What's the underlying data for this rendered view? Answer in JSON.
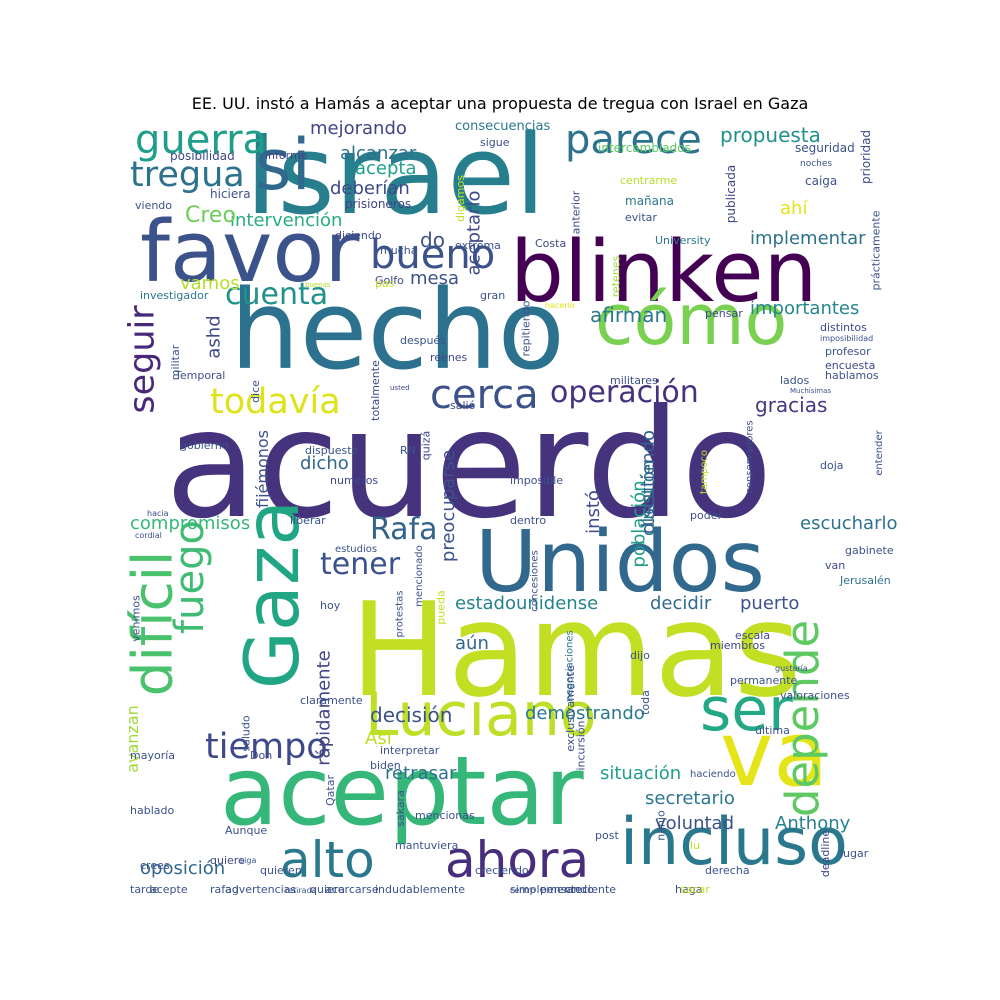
{
  "title": "EE. UU. instó a Hamás a aceptar una propuesta de tregua con Israel en Gaza",
  "words": [
    {
      "text": "acuerdo",
      "color": "#46337e"
    },
    {
      "text": "Hamas",
      "color": "#c2df23"
    },
    {
      "text": "Israel",
      "color": "#277f8e"
    },
    {
      "text": "hecho",
      "color": "#2c728e"
    },
    {
      "text": "aceptar",
      "color": "#35b779"
    },
    {
      "text": "blinken",
      "color": "#440154"
    },
    {
      "text": "Unidos",
      "color": "#31688e"
    },
    {
      "text": "favor",
      "color": "#3b528b"
    },
    {
      "text": "va",
      "color": "#e5e419"
    },
    {
      "text": "incluso",
      "color": "#2a788e"
    },
    {
      "text": "Gaza",
      "color": "#21a685"
    },
    {
      "text": "difícil",
      "color": "#4ac16d"
    },
    {
      "text": "cómo",
      "color": "#7ad151"
    },
    {
      "text": "si",
      "color": "#31688e"
    },
    {
      "text": "Luciano",
      "color": "#bddf26"
    },
    {
      "text": "ser",
      "color": "#22a884"
    },
    {
      "text": "ahora",
      "color": "#472d7b"
    },
    {
      "text": "alto",
      "color": "#2a788e"
    },
    {
      "text": "depende",
      "color": "#5ec962"
    },
    {
      "text": "fuego",
      "color": "#3fbc73"
    },
    {
      "text": "guerra",
      "color": "#1f9e89"
    },
    {
      "text": "parece",
      "color": "#2c728e"
    },
    {
      "text": "bueno",
      "color": "#3b528b"
    },
    {
      "text": "tregua",
      "color": "#2c728e"
    },
    {
      "text": "seguir",
      "color": "#482878"
    },
    {
      "text": "cerca",
      "color": "#3b528b"
    },
    {
      "text": "operación",
      "color": "#46337e"
    },
    {
      "text": "todavía",
      "color": "#dde318"
    },
    {
      "text": "tiempo",
      "color": "#3e4989"
    },
    {
      "text": "cuenta",
      "color": "#21918c"
    },
    {
      "text": "Rafa",
      "color": "#33638d"
    },
    {
      "text": "tener",
      "color": "#3b528b"
    },
    {
      "text": "gracias",
      "color": "#443983"
    },
    {
      "text": "propuesta",
      "color": "#21918c"
    },
    {
      "text": "alcanzar",
      "color": "#2c728e"
    },
    {
      "text": "mejorando",
      "color": "#414487"
    },
    {
      "text": "acepta",
      "color": "#1fa088"
    },
    {
      "text": "deberían",
      "color": "#3e4989"
    },
    {
      "text": "intervención",
      "color": "#27ad81"
    },
    {
      "text": "Creo",
      "color": "#6ccd5a"
    },
    {
      "text": "implementar",
      "color": "#2c728e"
    },
    {
      "text": "importantes",
      "color": "#25858e"
    },
    {
      "text": "afirman",
      "color": "#2a788e"
    },
    {
      "text": "mesa",
      "color": "#3b528b"
    },
    {
      "text": "do",
      "color": "#3b528b"
    },
    {
      "text": "ahí",
      "color": "#e5e419"
    },
    {
      "text": "vamos",
      "color": "#b5de2b"
    },
    {
      "text": "decisión",
      "color": "#3b528b"
    },
    {
      "text": "demostrando",
      "color": "#2a788e"
    },
    {
      "text": "decidir",
      "color": "#306a8e"
    },
    {
      "text": "puerto",
      "color": "#3b528b"
    },
    {
      "text": "estadounidense",
      "color": "#25838e"
    },
    {
      "text": "aún",
      "color": "#31688e"
    },
    {
      "text": "escucharlo",
      "color": "#2c728e"
    },
    {
      "text": "compromisos",
      "color": "#35b779"
    },
    {
      "text": "población",
      "color": "#1f9e89"
    },
    {
      "text": "cuestión",
      "color": "#2a788e"
    },
    {
      "text": "discutiendo",
      "color": "#34618d"
    },
    {
      "text": "preocuparse",
      "color": "#3b528b"
    },
    {
      "text": "instó",
      "color": "#3e4989"
    },
    {
      "text": "aceptarlo",
      "color": "#3e4989"
    },
    {
      "text": "dicho",
      "color": "#31688e"
    },
    {
      "text": "fijémonos",
      "color": "#3b528b"
    },
    {
      "text": "rápidamente",
      "color": "#414487"
    },
    {
      "text": "retrasar",
      "color": "#2c728e"
    },
    {
      "text": "situación",
      "color": "#1f9e89"
    },
    {
      "text": "secretario",
      "color": "#2a788e"
    },
    {
      "text": "voluntad",
      "color": "#3b528b"
    },
    {
      "text": "Anthony",
      "color": "#26828e"
    },
    {
      "text": "oposición",
      "color": "#31688e"
    },
    {
      "text": "avanzan",
      "color": "#9fda3a"
    },
    {
      "text": "Así",
      "color": "#bddf26"
    },
    {
      "text": "ashd",
      "color": "#3e4989"
    },
    {
      "text": "consecuencias",
      "color": "#2a788e"
    },
    {
      "text": "sigue",
      "color": "#3b528b"
    },
    {
      "text": "intercambiados",
      "color": "#5ec962"
    },
    {
      "text": "seguridad",
      "color": "#3b528b"
    },
    {
      "text": "prioridad",
      "color": "#3e4989"
    },
    {
      "text": "noches",
      "color": "#3b528b"
    },
    {
      "text": "caiga",
      "color": "#3b528b"
    },
    {
      "text": "publicada",
      "color": "#414487"
    },
    {
      "text": "posibilidad",
      "color": "#3e4989"
    },
    {
      "text": "informe",
      "color": "#414487"
    },
    {
      "text": "viendo",
      "color": "#3b528b"
    },
    {
      "text": "hiciera",
      "color": "#3b528b"
    },
    {
      "text": "prisioneros",
      "color": "#414487"
    },
    {
      "text": "digamos",
      "color": "#c2df23"
    },
    {
      "text": "centrarme",
      "color": "#b5de2b"
    },
    {
      "text": "mañana",
      "color": "#2a788e"
    },
    {
      "text": "evitar",
      "color": "#3b528b"
    },
    {
      "text": "anterior",
      "color": "#3e4989"
    },
    {
      "text": "prácticamente",
      "color": "#3b528b"
    },
    {
      "text": "diciendo",
      "color": "#3e4989"
    },
    {
      "text": "mucha",
      "color": "#3b528b"
    },
    {
      "text": "extrema",
      "color": "#3b528b"
    },
    {
      "text": "Costa",
      "color": "#3e4989"
    },
    {
      "text": "University",
      "color": "#2a788e"
    },
    {
      "text": "retenes",
      "color": "#9fda3a"
    },
    {
      "text": "investigador",
      "color": "#2a788e"
    },
    {
      "text": "Golfo",
      "color": "#3e4989"
    },
    {
      "text": "pas",
      "color": "#c2df23"
    },
    {
      "text": "buenas",
      "color": "#b5de2b"
    },
    {
      "text": "gran",
      "color": "#3b528b"
    },
    {
      "text": "repitiendo",
      "color": "#3b528b"
    },
    {
      "text": "hacerlo",
      "color": "#e5e419"
    },
    {
      "text": "pensar",
      "color": "#3e4989"
    },
    {
      "text": "distintos",
      "color": "#3e4989"
    },
    {
      "text": "imposibilidad",
      "color": "#3b528b"
    },
    {
      "text": "profesor",
      "color": "#3b528b"
    },
    {
      "text": "encuesta",
      "color": "#3e4989"
    },
    {
      "text": "hablamos",
      "color": "#3b528b"
    },
    {
      "text": "militar",
      "color": "#3b528b"
    },
    {
      "text": "dice",
      "color": "#3b528b"
    },
    {
      "text": "totalmente",
      "color": "#3e4989"
    },
    {
      "text": "después",
      "color": "#3b528b"
    },
    {
      "text": "reenes",
      "color": "#3e4989"
    },
    {
      "text": "Temporal",
      "color": "#3b528b"
    },
    {
      "text": "usted",
      "color": "#414487"
    },
    {
      "text": "militares",
      "color": "#3b528b"
    },
    {
      "text": "lados",
      "color": "#3b528b"
    },
    {
      "text": "Muchísimas",
      "color": "#3b528b"
    },
    {
      "text": "salió",
      "color": "#3e4989"
    },
    {
      "text": "quizá",
      "color": "#3e4989"
    },
    {
      "text": "gobierno",
      "color": "#3b528b"
    },
    {
      "text": "dispuesto",
      "color": "#3b528b"
    },
    {
      "text": "RN",
      "color": "#3b528b"
    },
    {
      "text": "numeros",
      "color": "#3e4989"
    },
    {
      "text": "imposible",
      "color": "#3b528b"
    },
    {
      "text": "tampoco",
      "color": "#c2df23"
    },
    {
      "text": "conservadores",
      "color": "#3b528b"
    },
    {
      "text": "entender",
      "color": "#3b528b"
    },
    {
      "text": "doja",
      "color": "#3b528b"
    },
    {
      "text": "hacia",
      "color": "#3e4989"
    },
    {
      "text": "cordial",
      "color": "#3b528b"
    },
    {
      "text": "liberar",
      "color": "#3b528b"
    },
    {
      "text": "dentro",
      "color": "#3b528b"
    },
    {
      "text": "poder",
      "color": "#3b528b"
    },
    {
      "text": "estudios",
      "color": "#3b528b"
    },
    {
      "text": "mencionado",
      "color": "#3b528b"
    },
    {
      "text": "concesiones",
      "color": "#3b528b"
    },
    {
      "text": "gabinete",
      "color": "#3b528b"
    },
    {
      "text": "van",
      "color": "#3e4989"
    },
    {
      "text": "Jerusalén",
      "color": "#2c728e"
    },
    {
      "text": "protestas",
      "color": "#3b528b"
    },
    {
      "text": "pueda",
      "color": "#c2df23"
    },
    {
      "text": "hoy",
      "color": "#3b528b"
    },
    {
      "text": "venimos",
      "color": "#3b528b"
    },
    {
      "text": "escala",
      "color": "#3e4989"
    },
    {
      "text": "negociaciones",
      "color": "#2c728e"
    },
    {
      "text": "miembros",
      "color": "#3e4989"
    },
    {
      "text": "dijo",
      "color": "#3b528b"
    },
    {
      "text": "gustaría",
      "color": "#3b528b"
    },
    {
      "text": "exclusivamente",
      "color": "#3b528b"
    },
    {
      "text": "permanente",
      "color": "#3b528b"
    },
    {
      "text": "toda",
      "color": "#3b528b"
    },
    {
      "text": "valoraciones",
      "color": "#3b528b"
    },
    {
      "text": "claramente",
      "color": "#3b528b"
    },
    {
      "text": "incursión",
      "color": "#3e4989"
    },
    {
      "text": "saludo",
      "color": "#3b528b"
    },
    {
      "text": "última",
      "color": "#3b528b"
    },
    {
      "text": "mayoría",
      "color": "#3b528b"
    },
    {
      "text": "Don",
      "color": "#3e4989"
    },
    {
      "text": "interpretar",
      "color": "#3b528b"
    },
    {
      "text": "biden",
      "color": "#3b528b"
    },
    {
      "text": "haciendo",
      "color": "#3b528b"
    },
    {
      "text": "Qatar",
      "color": "#3b528b"
    },
    {
      "text": "sakara",
      "color": "#3b528b"
    },
    {
      "text": "mencionas",
      "color": "#3b528b"
    },
    {
      "text": "nanjo",
      "color": "#3b528b"
    },
    {
      "text": "post",
      "color": "#3b528b"
    },
    {
      "text": "deadline",
      "color": "#3e4989"
    },
    {
      "text": "Aunque",
      "color": "#3b528b"
    },
    {
      "text": "mantuviera",
      "color": "#3b528b"
    },
    {
      "text": "lugar",
      "color": "#3b528b"
    },
    {
      "text": "hablado",
      "color": "#3b528b"
    },
    {
      "text": "quiere",
      "color": "#3e4989"
    },
    {
      "text": "crees",
      "color": "#3b528b"
    },
    {
      "text": "lu",
      "color": "#c2df23"
    },
    {
      "text": "quieren",
      "color": "#3b528b"
    },
    {
      "text": "creciendo",
      "color": "#3b528b"
    },
    {
      "text": "derecha",
      "color": "#3b528b"
    },
    {
      "text": "siga",
      "color": "#3b528b"
    },
    {
      "text": "acepte",
      "color": "#3b528b"
    },
    {
      "text": "rafag",
      "color": "#3b528b"
    },
    {
      "text": "acercarse",
      "color": "#3b528b"
    },
    {
      "text": "pensando",
      "color": "#3b528b"
    },
    {
      "text": "creciente",
      "color": "#3b528b"
    },
    {
      "text": "haga",
      "color": "#3b528b"
    },
    {
      "text": "sacar",
      "color": "#c2df23"
    },
    {
      "text": "tarde",
      "color": "#3b528b"
    },
    {
      "text": "netan",
      "color": "#3b528b"
    },
    {
      "text": "quiera",
      "color": "#3b528b"
    },
    {
      "text": "retirada",
      "color": "#3b528b"
    },
    {
      "text": "indudablemente",
      "color": "#3b528b"
    },
    {
      "text": "simplemente",
      "color": "#3b528b"
    },
    {
      "text": "centro",
      "color": "#3b528b"
    },
    {
      "text": "advertencias",
      "color": "#3b528b"
    }
  ]
}
